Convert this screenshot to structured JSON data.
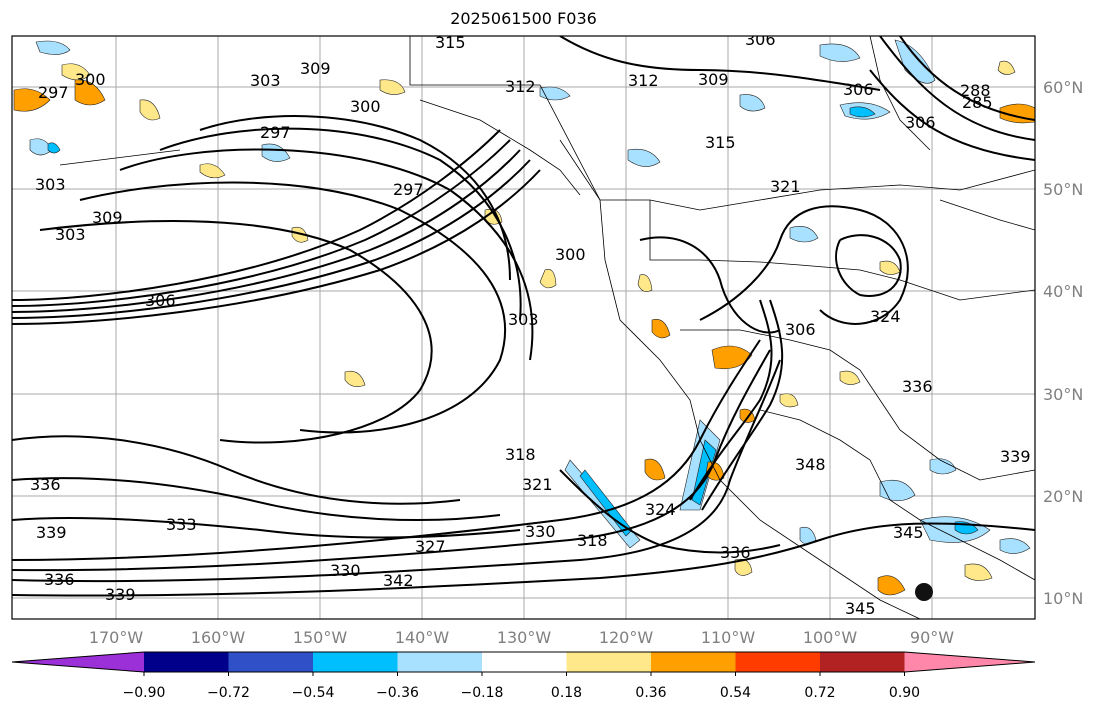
{
  "title": "2025061500 F036",
  "map": {
    "lat_labels": [
      "60°N",
      "50°N",
      "40°N",
      "30°N",
      "20°N",
      "10°N"
    ],
    "lon_labels": [
      "170°W",
      "160°W",
      "150°W",
      "140°W",
      "130°W",
      "120°W",
      "110°W",
      "100°W",
      "90°W"
    ],
    "contour_labels": [
      "300",
      "297",
      "309",
      "303",
      "312",
      "312",
      "309",
      "306",
      "285",
      "288",
      "306",
      "303",
      "300",
      "297",
      "315",
      "321",
      "306",
      "309",
      "303",
      "297",
      "300",
      "303",
      "306",
      "315",
      "324",
      "336",
      "318",
      "321",
      "348",
      "339",
      "336",
      "327",
      "339",
      "330",
      "342",
      "318",
      "336",
      "345",
      "345",
      "339",
      "336",
      "324",
      "330",
      "306",
      "333"
    ]
  },
  "colorbar": {
    "tick_labels": [
      "−0.90",
      "−0.72",
      "−0.54",
      "−0.36",
      "−0.18",
      "0.18",
      "0.36",
      "0.54",
      "0.72",
      "0.90"
    ],
    "colors": [
      "#9b30d9",
      "#00008b",
      "#3050c8",
      "#00bfff",
      "#a8e0ff",
      "#ffffff",
      "#ffe88a",
      "#ffa000",
      "#ff3c00",
      "#b22222",
      "#ff88aa"
    ]
  }
}
